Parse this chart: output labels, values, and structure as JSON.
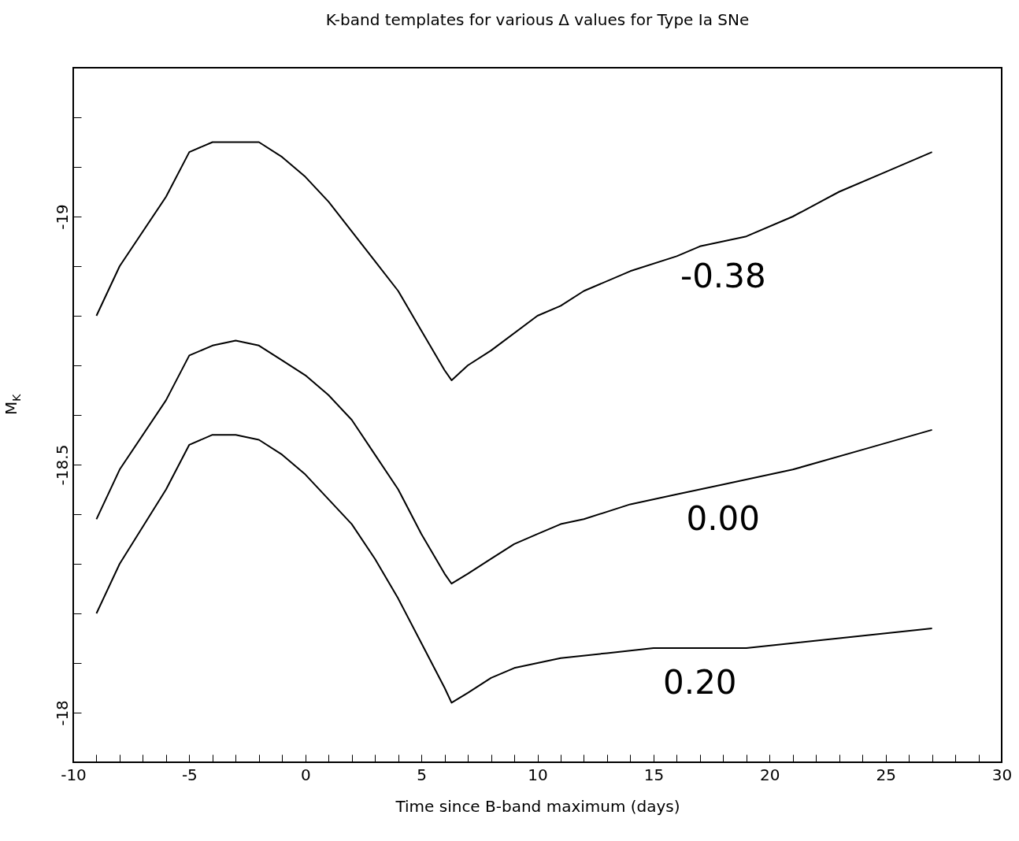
{
  "chart_data": {
    "type": "line",
    "title": "K-band templates for various Δ values for Type Ia SNe",
    "xlabel": "Time since B-band maximum (days)",
    "ylabel": "M$_{K}$",
    "xlim": [
      -10,
      30
    ],
    "ylim": [
      -17.9,
      -19.3
    ],
    "xticks": [
      -10,
      {
        "value": -9,
        "label": null
      },
      {
        "value": -8,
        "label": null
      },
      {
        "value": -7,
        "label": null
      },
      {
        "value": -6,
        "label": null
      },
      -5,
      {
        "value": -4,
        "label": null
      },
      {
        "value": -3,
        "label": null
      },
      {
        "value": -2,
        "label": null
      },
      {
        "value": -1,
        "label": null
      },
      0,
      {
        "value": 1,
        "label": null
      },
      {
        "value": 2,
        "label": null
      },
      {
        "value": 3,
        "label": null
      },
      {
        "value": 4,
        "label": null
      },
      5,
      {
        "value": 6,
        "label": null
      },
      {
        "value": 7,
        "label": null
      },
      {
        "value": 8,
        "label": null
      },
      {
        "value": 9,
        "label": null
      },
      10,
      {
        "value": 11,
        "label": null
      },
      {
        "value": 12,
        "label": null
      },
      {
        "value": 13,
        "label": null
      },
      {
        "value": 14,
        "label": null
      },
      15,
      {
        "value": 16,
        "label": null
      },
      {
        "value": 17,
        "label": null
      },
      {
        "value": 18,
        "label": null
      },
      {
        "value": 19,
        "label": null
      },
      20,
      {
        "value": 21,
        "label": null
      },
      {
        "value": 22,
        "label": null
      },
      {
        "value": 23,
        "label": null
      },
      {
        "value": 24,
        "label": null
      },
      25,
      {
        "value": 26,
        "label": null
      },
      {
        "value": 27,
        "label": null
      },
      {
        "value": 28,
        "label": null
      },
      {
        "value": 29,
        "label": null
      },
      30
    ],
    "yticks": [
      {
        "value": -19.2,
        "label": null
      },
      {
        "value": -19.1,
        "label": null
      },
      -19,
      {
        "value": -18.9,
        "label": null
      },
      {
        "value": -18.8,
        "label": null
      },
      {
        "value": -18.7,
        "label": null
      },
      {
        "value": -18.6,
        "label": null
      },
      -18.5,
      {
        "value": -18.4,
        "label": null
      },
      {
        "value": -18.3,
        "label": null
      },
      {
        "value": -18.2,
        "label": null
      },
      {
        "value": -18.1,
        "label": null
      },
      -18
    ],
    "grid": false,
    "legend": false,
    "line_style": "solid",
    "marker": "none",
    "series": [
      {
        "name": "-0.38",
        "color": "#000000",
        "x": [
          -9,
          -8,
          -6,
          -5,
          -4,
          -3,
          -2,
          -1,
          0,
          1,
          2,
          3,
          4,
          5,
          6,
          6.3,
          7,
          8,
          10,
          11,
          12,
          14,
          16,
          17,
          18,
          19,
          21,
          23,
          25,
          27
        ],
        "values": [
          -18.8,
          -18.9,
          -19.04,
          -19.13,
          -19.15,
          -19.15,
          -19.15,
          -19.12,
          -19.08,
          -19.03,
          -18.97,
          -18.91,
          -18.85,
          -18.77,
          -18.69,
          -18.67,
          -18.7,
          -18.73,
          -18.8,
          -18.82,
          -18.85,
          -18.89,
          -18.92,
          -18.94,
          -18.95,
          -18.96,
          -19,
          -19.05,
          -19.09,
          -19.13
        ]
      },
      {
        "name": "0.00",
        "color": "#000000",
        "x": [
          -9,
          -8,
          -6,
          -5,
          -4,
          -3,
          -2,
          -1,
          0,
          1,
          2,
          3,
          4,
          5,
          6,
          6.3,
          7,
          8,
          9,
          10,
          11,
          12,
          14,
          16,
          18,
          21,
          24,
          27
        ],
        "values": [
          -18.39,
          -18.49,
          -18.63,
          -18.72,
          -18.74,
          -18.75,
          -18.74,
          -18.71,
          -18.68,
          -18.64,
          -18.59,
          -18.52,
          -18.45,
          -18.36,
          -18.28,
          -18.26,
          -18.28,
          -18.31,
          -18.34,
          -18.36,
          -18.38,
          -18.39,
          -18.42,
          -18.44,
          -18.46,
          -18.49,
          -18.53,
          -18.57
        ]
      },
      {
        "name": "0.20",
        "color": "#000000",
        "x": [
          -9,
          -8,
          -6,
          -5,
          -4,
          -3,
          -2,
          -1,
          0,
          1,
          2,
          3,
          4,
          5,
          6,
          6.3,
          7,
          8,
          9,
          10,
          11,
          13,
          15,
          17,
          19,
          21,
          23,
          25,
          27
        ],
        "values": [
          -18.2,
          -18.3,
          -18.45,
          -18.54,
          -18.56,
          -18.56,
          -18.55,
          -18.52,
          -18.48,
          -18.43,
          -18.38,
          -18.31,
          -18.23,
          -18.14,
          -18.05,
          -18.02,
          -18.04,
          -18.07,
          -18.09,
          -18.1,
          -18.11,
          -18.12,
          -18.13,
          -18.13,
          -18.13,
          -18.14,
          -18.15,
          -18.16,
          -18.17
        ]
      }
    ]
  }
}
